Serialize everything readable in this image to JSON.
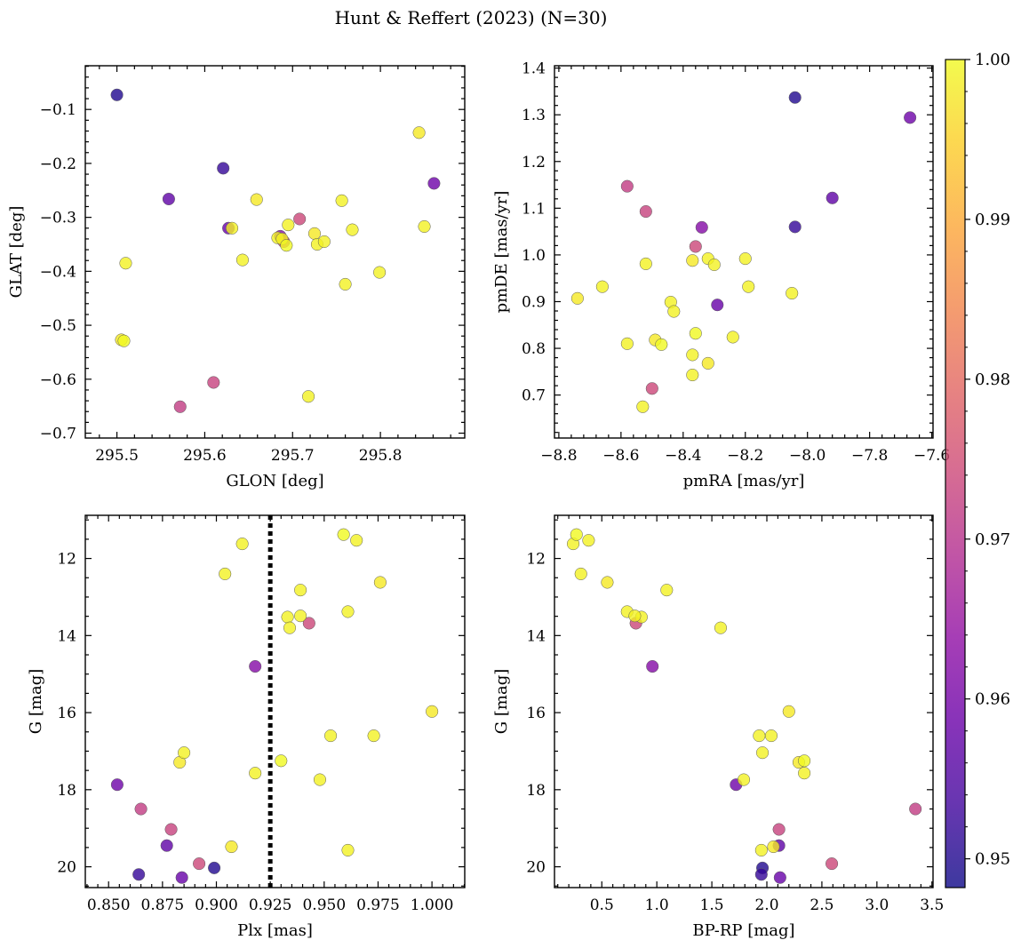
{
  "chart_data": {
    "title": "Hunt & Reffert (2023) (N=30)",
    "colormap": "plasma",
    "colorbar": {
      "range": [
        0.9482,
        1.0
      ],
      "ticks": [
        0.95,
        0.96,
        0.97,
        0.98,
        0.99,
        1.0
      ],
      "tick_labels": [
        "0.95",
        "0.96",
        "0.97",
        "0.98",
        "0.99",
        "1.00"
      ]
    },
    "stars": [
      {
        "glon": 295.5,
        "glat": -0.073,
        "pmra": -8.04,
        "pmde": 1.337,
        "plx": 0.899,
        "g": 20.03,
        "bprp": 1.96,
        "prob": 0.95
      },
      {
        "glon": 295.559,
        "glat": -0.266,
        "pmra": -7.92,
        "pmde": 1.122,
        "plx": 0.877,
        "g": 19.45,
        "bprp": 2.11,
        "prob": 0.957
      },
      {
        "glon": 295.621,
        "glat": -0.209,
        "pmra": -8.04,
        "pmde": 1.06,
        "plx": 0.864,
        "g": 20.2,
        "bprp": 1.95,
        "prob": 0.952
      },
      {
        "glon": 295.627,
        "glat": -0.32,
        "pmra": -8.29,
        "pmde": 0.893,
        "plx": 0.884,
        "g": 20.28,
        "bprp": 2.12,
        "prob": 0.958
      },
      {
        "glon": 295.861,
        "glat": -0.237,
        "pmra": -7.67,
        "pmde": 1.294,
        "plx": 0.854,
        "g": 17.87,
        "bprp": 1.72,
        "prob": 0.959
      },
      {
        "glon": 295.686,
        "glat": -0.335,
        "pmra": -8.34,
        "pmde": 1.059,
        "plx": 0.918,
        "g": 14.8,
        "bprp": 0.96,
        "prob": 0.962
      },
      {
        "glon": 295.572,
        "glat": -0.651,
        "pmra": -8.58,
        "pmde": 1.147,
        "plx": 0.865,
        "g": 18.5,
        "bprp": 3.35,
        "prob": 0.972
      },
      {
        "glon": 295.61,
        "glat": -0.606,
        "pmra": -8.52,
        "pmde": 1.093,
        "plx": 0.879,
        "g": 19.03,
        "bprp": 2.11,
        "prob": 0.973
      },
      {
        "glon": 295.708,
        "glat": -0.303,
        "pmra": -8.36,
        "pmde": 1.018,
        "plx": 0.892,
        "g": 19.92,
        "bprp": 2.59,
        "prob": 0.974
      },
      {
        "glon": 295.69,
        "glat": -0.345,
        "pmra": -8.5,
        "pmde": 0.714,
        "plx": 0.943,
        "g": 13.68,
        "bprp": 0.81,
        "prob": 0.974
      },
      {
        "glon": 295.844,
        "glat": -0.143,
        "pmra": -8.74,
        "pmde": 0.907,
        "plx": 1.0,
        "g": 15.97,
        "bprp": 2.2,
        "prob": 0.998
      },
      {
        "glon": 295.756,
        "glat": -0.269,
        "pmra": -8.66,
        "pmde": 0.932,
        "plx": 0.973,
        "g": 16.6,
        "bprp": 2.04,
        "prob": 0.999
      },
      {
        "glon": 295.85,
        "glat": -0.317,
        "pmra": -8.58,
        "pmde": 0.81,
        "plx": 0.885,
        "g": 17.04,
        "bprp": 1.96,
        "prob": 0.999
      },
      {
        "glon": 295.51,
        "glat": -0.385,
        "pmra": -8.52,
        "pmde": 0.981,
        "plx": 0.953,
        "g": 16.6,
        "bprp": 1.93,
        "prob": 0.999
      },
      {
        "glon": 295.505,
        "glat": -0.527,
        "pmra": -8.49,
        "pmde": 0.818,
        "plx": 0.883,
        "g": 17.29,
        "bprp": 2.29,
        "prob": 0.998
      },
      {
        "glon": 295.508,
        "glat": -0.529,
        "pmra": -8.47,
        "pmde": 0.808,
        "plx": 0.93,
        "g": 17.25,
        "bprp": 2.34,
        "prob": 1.0
      },
      {
        "glon": 295.631,
        "glat": -0.32,
        "pmra": -8.44,
        "pmde": 0.899,
        "plx": 0.918,
        "g": 17.57,
        "bprp": 2.34,
        "prob": 0.999
      },
      {
        "glon": 295.643,
        "glat": -0.379,
        "pmra": -8.43,
        "pmde": 0.879,
        "plx": 0.948,
        "g": 17.74,
        "bprp": 1.79,
        "prob": 0.999
      },
      {
        "glon": 295.659,
        "glat": -0.267,
        "pmra": -8.37,
        "pmde": 0.988,
        "plx": 0.907,
        "g": 19.48,
        "bprp": 2.06,
        "prob": 0.998
      },
      {
        "glon": 295.683,
        "glat": -0.338,
        "pmra": -8.32,
        "pmde": 0.992,
        "plx": 0.961,
        "g": 19.57,
        "bprp": 1.95,
        "prob": 0.999
      },
      {
        "glon": 295.688,
        "glat": -0.34,
        "pmra": -8.3,
        "pmde": 0.979,
        "plx": 0.912,
        "g": 11.62,
        "bprp": 0.24,
        "prob": 0.999
      },
      {
        "glon": 295.693,
        "glat": -0.352,
        "pmra": -8.36,
        "pmde": 0.832,
        "plx": 0.959,
        "g": 11.38,
        "bprp": 0.27,
        "prob": 1.0
      },
      {
        "glon": 295.695,
        "glat": -0.314,
        "pmra": -8.37,
        "pmde": 0.786,
        "plx": 0.965,
        "g": 11.53,
        "bprp": 0.38,
        "prob": 0.999
      },
      {
        "glon": 295.718,
        "glat": -0.632,
        "pmra": -8.37,
        "pmde": 0.743,
        "plx": 0.904,
        "g": 12.4,
        "bprp": 0.31,
        "prob": 0.999
      },
      {
        "glon": 295.725,
        "glat": -0.33,
        "pmra": -8.32,
        "pmde": 0.768,
        "plx": 0.976,
        "g": 12.62,
        "bprp": 0.55,
        "prob": 0.998
      },
      {
        "glon": 295.728,
        "glat": -0.35,
        "pmra": -8.24,
        "pmde": 0.824,
        "plx": 0.939,
        "g": 12.82,
        "bprp": 1.09,
        "prob": 0.999
      },
      {
        "glon": 295.736,
        "glat": -0.345,
        "pmra": -8.2,
        "pmde": 0.992,
        "plx": 0.961,
        "g": 13.38,
        "bprp": 0.73,
        "prob": 0.999
      },
      {
        "glon": 295.76,
        "glat": -0.424,
        "pmra": -8.19,
        "pmde": 0.932,
        "plx": 0.933,
        "g": 13.52,
        "bprp": 0.86,
        "prob": 0.999
      },
      {
        "glon": 295.768,
        "glat": -0.323,
        "pmra": -8.05,
        "pmde": 0.918,
        "plx": 0.939,
        "g": 13.49,
        "bprp": 0.8,
        "prob": 0.999
      },
      {
        "glon": 295.799,
        "glat": -0.402,
        "pmra": -8.53,
        "pmde": 0.675,
        "plx": 0.934,
        "g": 13.8,
        "bprp": 1.58,
        "prob": 0.999
      }
    ],
    "panels": [
      {
        "id": "glon-glat",
        "type": "scatter",
        "x_field": "glon",
        "y_field": "glat",
        "xlabel": "GLON [deg]",
        "ylabel": "GLAT [deg]",
        "xlim": [
          295.464,
          295.896
        ],
        "ylim": [
          -0.709,
          -0.019
        ],
        "y_inverted": false,
        "xticks": [
          295.5,
          295.6,
          295.7,
          295.8
        ],
        "xtick_labels": [
          "295.5",
          "295.6",
          "295.7",
          "295.8"
        ],
        "yticks": [
          -0.1,
          -0.2,
          -0.3,
          -0.4,
          -0.5,
          -0.6,
          -0.7
        ],
        "ytick_labels": [
          "−0.1",
          "−0.2",
          "−0.3",
          "−0.4",
          "−0.5",
          "−0.6",
          "−0.7"
        ]
      },
      {
        "id": "pm",
        "type": "scatter",
        "x_field": "pmra",
        "y_field": "pmde",
        "xlabel": "pmRA [mas/yr]",
        "ylabel": "pmDE [mas/yr]",
        "xlim": [
          -8.814,
          -7.596
        ],
        "ylim": [
          0.608,
          1.405
        ],
        "y_inverted": false,
        "xticks": [
          -8.8,
          -8.6,
          -8.4,
          -8.2,
          -8.0,
          -7.8,
          -7.6
        ],
        "xtick_labels": [
          "−8.8",
          "−8.6",
          "−8.4",
          "−8.2",
          "−8.0",
          "−7.8",
          "−7.6"
        ],
        "yticks": [
          0.7,
          0.8,
          0.9,
          1.0,
          1.1,
          1.2,
          1.3,
          1.4
        ],
        "ytick_labels": [
          "0.7",
          "0.8",
          "0.9",
          "1.0",
          "1.1",
          "1.2",
          "1.3",
          "1.4"
        ]
      },
      {
        "id": "plx-g",
        "type": "scatter",
        "x_field": "plx",
        "y_field": "g",
        "xlabel": "Plx [mas]",
        "ylabel": "G [mag]",
        "xlim": [
          0.8392,
          1.0152
        ],
        "ylim": [
          10.88,
          20.54
        ],
        "y_inverted": true,
        "vline": 0.925,
        "xticks": [
          0.85,
          0.875,
          0.9,
          0.925,
          0.95,
          0.975,
          1.0
        ],
        "xtick_labels": [
          "0.850",
          "0.875",
          "0.900",
          "0.925",
          "0.950",
          "0.975",
          "1.000"
        ],
        "yticks": [
          12,
          14,
          16,
          18,
          20
        ],
        "ytick_labels": [
          "12",
          "14",
          "16",
          "18",
          "20"
        ]
      },
      {
        "id": "cmd",
        "type": "scatter",
        "x_field": "bprp",
        "y_field": "g",
        "xlabel": "BP-RP [mag]",
        "ylabel": "G [mag]",
        "xlim": [
          0.07,
          3.51
        ],
        "ylim": [
          10.88,
          20.54
        ],
        "y_inverted": true,
        "xticks": [
          0.5,
          1.0,
          1.5,
          2.0,
          2.5,
          3.0,
          3.5
        ],
        "xtick_labels": [
          "0.5",
          "1.0",
          "1.5",
          "2.0",
          "2.5",
          "3.0",
          "3.5"
        ],
        "yticks": [
          12,
          14,
          16,
          18,
          20
        ],
        "ytick_labels": [
          "12",
          "14",
          "16",
          "18",
          "20"
        ]
      }
    ]
  }
}
